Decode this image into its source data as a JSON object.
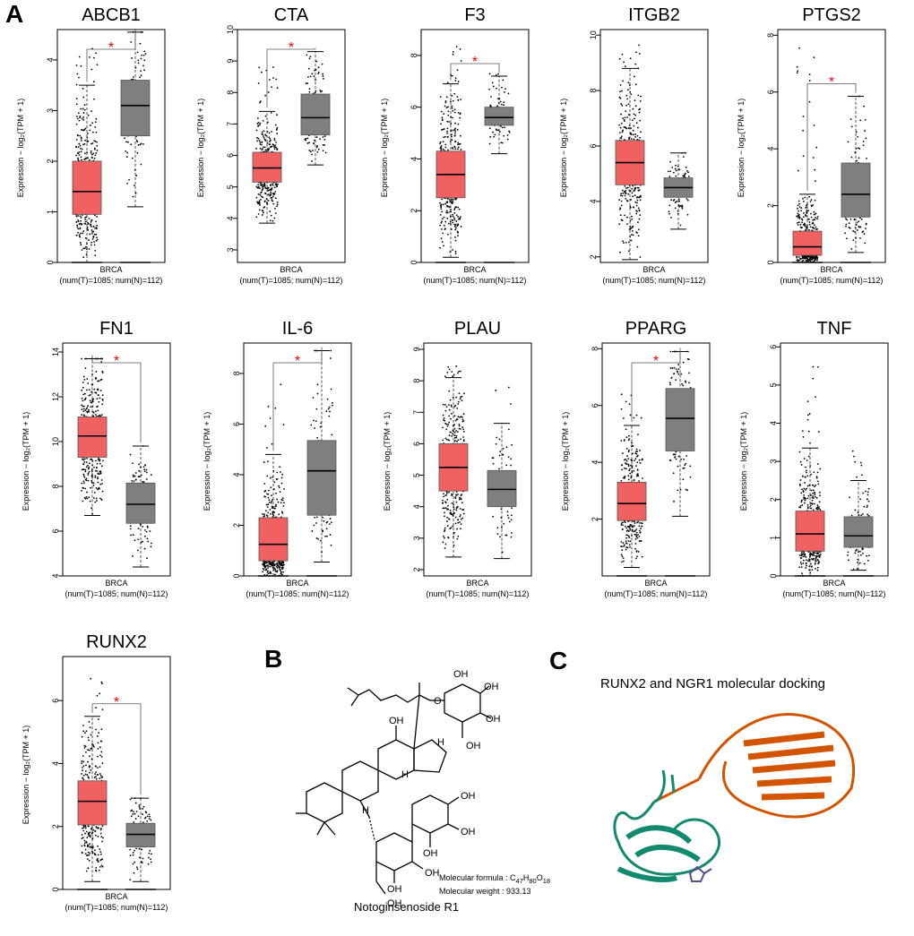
{
  "panel_labels": {
    "a": "A",
    "b": "B",
    "c": "C"
  },
  "colors": {
    "tumor": "#F26161",
    "normal": "#7F7F7F",
    "significance": "#FF0000",
    "chain_orange": "#D35400",
    "chain_green": "#138A6D",
    "ligand": "#5B4A8A"
  },
  "chart_data": [
    {
      "type": "boxplot",
      "title": "ABCB1",
      "ylim": [
        0,
        4.6
      ],
      "yticks": [
        0,
        1,
        2,
        3,
        4
      ],
      "ylabel": "Expression − log₂(TPM + 1)",
      "xlabel": "BRCA",
      "xcount": "(num(T)=1085; num(N)=112)",
      "significant": true,
      "sig_label": "*",
      "series": [
        {
          "name": "Tumor",
          "q1": 0.95,
          "median": 1.4,
          "q3": 2.0,
          "whisker_low": 0,
          "whisker_high": 3.5,
          "max": 4.35
        },
        {
          "name": "Normal",
          "q1": 2.5,
          "median": 3.1,
          "q3": 3.6,
          "whisker_low": 1.1,
          "whisker_high": 4.55,
          "max": 4.55
        }
      ]
    },
    {
      "type": "boxplot",
      "title": "CTA",
      "ylim": [
        2.6,
        10
      ],
      "yticks": [
        3,
        4,
        5,
        6,
        7,
        8,
        9,
        10
      ],
      "ylabel": "Expression − log₂(TPM + 1)",
      "xlabel": "BRCA",
      "xcount": "(num(T)=1085; num(N)=112)",
      "significant": true,
      "sig_label": "*",
      "series": [
        {
          "name": "Tumor",
          "q1": 5.15,
          "median": 5.6,
          "q3": 6.1,
          "whisker_low": 3.85,
          "whisker_high": 7.4,
          "max": 8.9
        },
        {
          "name": "Normal",
          "q1": 6.65,
          "median": 7.2,
          "q3": 7.95,
          "whisker_low": 5.7,
          "whisker_high": 9.3,
          "max": 9.3
        }
      ]
    },
    {
      "type": "boxplot",
      "title": "F3",
      "ylim": [
        0,
        9
      ],
      "yticks": [
        0,
        2,
        4,
        6,
        8
      ],
      "ylabel": "Expression − log₂(TPM + 1)",
      "xlabel": "BRCA",
      "xcount": "(num(T)=1085; num(N)=112)",
      "significant": true,
      "sig_label": "*",
      "series": [
        {
          "name": "Tumor",
          "q1": 2.5,
          "median": 3.4,
          "q3": 4.3,
          "whisker_low": 0.2,
          "whisker_high": 6.9,
          "max": 8.5
        },
        {
          "name": "Normal",
          "q1": 5.3,
          "median": 5.6,
          "q3": 6.0,
          "whisker_low": 4.2,
          "whisker_high": 7.2,
          "max": 7.3
        }
      ]
    },
    {
      "type": "boxplot",
      "title": "ITGB2",
      "ylim": [
        1.8,
        10.2
      ],
      "yticks": [
        2,
        4,
        6,
        8,
        10
      ],
      "ylabel": "Expression − log₂(TPM + 1)",
      "xlabel": "BRCA",
      "xcount": "(num(T)=1085; num(N)=112)",
      "significant": false,
      "sig_label": "",
      "series": [
        {
          "name": "Tumor",
          "q1": 4.6,
          "median": 5.4,
          "q3": 6.2,
          "whisker_low": 1.9,
          "whisker_high": 8.8,
          "max": 9.7
        },
        {
          "name": "Normal",
          "q1": 4.15,
          "median": 4.5,
          "q3": 4.85,
          "whisker_low": 3.0,
          "whisker_high": 5.75,
          "max": 5.75
        }
      ]
    },
    {
      "type": "boxplot",
      "title": "PTGS2",
      "ylim": [
        0,
        8.2
      ],
      "yticks": [
        0,
        2,
        4,
        6,
        8
      ],
      "ylabel": "Expression − log₂(TPM + 1)",
      "xlabel": "BRCA",
      "xcount": "(num(T)=1085; num(N)=112)",
      "significant": true,
      "sig_label": "*",
      "series": [
        {
          "name": "Tumor",
          "q1": 0.25,
          "median": 0.55,
          "q3": 1.1,
          "whisker_low": 0,
          "whisker_high": 2.4,
          "max": 7.7
        },
        {
          "name": "Normal",
          "q1": 1.6,
          "median": 2.4,
          "q3": 3.5,
          "whisker_low": 0.35,
          "whisker_high": 5.85,
          "max": 5.85
        }
      ]
    },
    {
      "type": "boxplot",
      "title": "FN1",
      "ylim": [
        4,
        14.4
      ],
      "yticks": [
        4,
        6,
        8,
        10,
        12,
        14
      ],
      "ylabel": "Expression − log₂(TPM + 1)",
      "xlabel": "BRCA",
      "xcount": "(num(T)=1085; num(N)=112)",
      "significant": true,
      "sig_label": "*",
      "series": [
        {
          "name": "Tumor",
          "q1": 9.3,
          "median": 10.25,
          "q3": 11.1,
          "whisker_low": 6.7,
          "whisker_high": 13.7,
          "max": 13.7
        },
        {
          "name": "Normal",
          "q1": 6.35,
          "median": 7.2,
          "q3": 8.15,
          "whisker_low": 4.4,
          "whisker_high": 9.8,
          "max": 9.8
        }
      ]
    },
    {
      "type": "boxplot",
      "title": "IL-6",
      "ylim": [
        0,
        9.2
      ],
      "yticks": [
        0,
        2,
        4,
        6,
        8
      ],
      "ylabel": "Expression − log₂(TPM + 1)",
      "xlabel": "BRCA",
      "xcount": "(num(T)=1085; num(N)=112)",
      "significant": true,
      "sig_label": "*",
      "series": [
        {
          "name": "Tumor",
          "q1": 0.6,
          "median": 1.25,
          "q3": 2.3,
          "whisker_low": 0,
          "whisker_high": 4.8,
          "max": 8.8
        },
        {
          "name": "Normal",
          "q1": 2.4,
          "median": 4.15,
          "q3": 5.35,
          "whisker_low": 0.55,
          "whisker_high": 8.9,
          "max": 8.9
        }
      ]
    },
    {
      "type": "boxplot",
      "title": "PLAU",
      "ylim": [
        1.8,
        9.2
      ],
      "yticks": [
        2,
        3,
        4,
        5,
        6,
        7,
        8,
        9
      ],
      "ylabel": "Expression − log₂(TPM + 1)",
      "xlabel": "BRCA",
      "xcount": "(num(T)=1085; num(N)=112)",
      "significant": false,
      "sig_label": "",
      "series": [
        {
          "name": "Tumor",
          "q1": 4.5,
          "median": 5.25,
          "q3": 6.0,
          "whisker_low": 2.4,
          "whisker_high": 8.1,
          "max": 8.5
        },
        {
          "name": "Normal",
          "q1": 4.0,
          "median": 4.55,
          "q3": 5.15,
          "whisker_low": 2.35,
          "whisker_high": 6.65,
          "max": 8.2
        }
      ]
    },
    {
      "type": "boxplot",
      "title": "PPARG",
      "ylim": [
        0,
        8.2
      ],
      "yticks": [
        2,
        4,
        6,
        8
      ],
      "ylabel": "Expression − log₂(TPM + 1)",
      "xlabel": "BRCA",
      "xcount": "(num(T)=1085; num(N)=112)",
      "significant": true,
      "sig_label": "*",
      "series": [
        {
          "name": "Tumor",
          "q1": 1.95,
          "median": 2.55,
          "q3": 3.3,
          "whisker_low": 0.3,
          "whisker_high": 5.3,
          "max": 6.9
        },
        {
          "name": "Normal",
          "q1": 4.4,
          "median": 5.55,
          "q3": 6.6,
          "whisker_low": 2.1,
          "whisker_high": 7.9,
          "max": 7.9
        }
      ]
    },
    {
      "type": "boxplot",
      "title": "TNF",
      "ylim": [
        0,
        6.1
      ],
      "yticks": [
        0,
        1,
        2,
        3,
        4,
        5,
        6
      ],
      "ylabel": "Expression − log₂(TPM + 1)",
      "xlabel": "BRCA",
      "xcount": "(num(T)=1085; num(N)=112)",
      "significant": false,
      "sig_label": "",
      "series": [
        {
          "name": "Tumor",
          "q1": 0.65,
          "median": 1.1,
          "q3": 1.7,
          "whisker_low": 0,
          "whisker_high": 3.35,
          "max": 5.5
        },
        {
          "name": "Normal",
          "q1": 0.75,
          "median": 1.05,
          "q3": 1.55,
          "whisker_low": 0.15,
          "whisker_high": 2.5,
          "max": 3.5
        }
      ]
    },
    {
      "type": "boxplot",
      "title": "RUNX2",
      "ylim": [
        0,
        7.4
      ],
      "yticks": [
        0,
        2,
        4,
        6
      ],
      "ylabel": "Expression − log₂(TPM + 1)",
      "xlabel": "BRCA",
      "xcount": "(num(T)=1085; num(N)=112)",
      "significant": true,
      "sig_label": "*",
      "series": [
        {
          "name": "Tumor",
          "q1": 2.05,
          "median": 2.8,
          "q3": 3.45,
          "whisker_low": 0.25,
          "whisker_high": 5.5,
          "max": 7.2
        },
        {
          "name": "Normal",
          "q1": 1.35,
          "median": 1.75,
          "q3": 2.1,
          "whisker_low": 0.25,
          "whisker_high": 2.9,
          "max": 2.9
        }
      ]
    }
  ],
  "structure": {
    "caption": "Notoginsenoside R1",
    "formula_prefix": "Molecular formula : C",
    "formula_c": "47",
    "formula_h_prefix": "H",
    "formula_h": "80",
    "formula_o_prefix": "O",
    "formula_o": "18",
    "weight": "Molecular weight : 933.13",
    "labels": {
      "oh": "OH",
      "ho": "HO",
      "o": "O",
      "h": "H"
    }
  },
  "docking": {
    "title": "RUNX2 and NGR1 molecular docking"
  }
}
